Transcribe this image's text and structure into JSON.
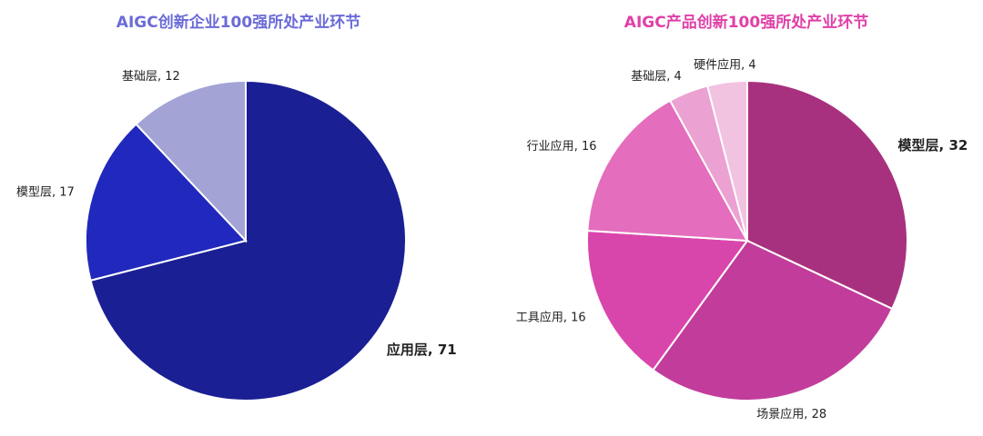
{
  "chart_data": [
    {
      "type": "pie",
      "title": "AIGC创新企业100强所处产业环节",
      "title_color": "#6b6bd8",
      "slices": [
        {
          "label": "应用层",
          "value": 71,
          "color": "#1a1f94",
          "emphasis": true
        },
        {
          "label": "模型层",
          "value": 17,
          "color": "#2028bd",
          "emphasis": false
        },
        {
          "label": "基础层",
          "value": 12,
          "color": "#a3a3d6",
          "emphasis": false
        }
      ]
    },
    {
      "type": "pie",
      "title": "AIGC产品创新100强所处产业环节",
      "title_color": "#e040a8",
      "slices": [
        {
          "label": "模型层",
          "value": 32,
          "color": "#a8317f",
          "emphasis": true,
          "label_color": "#e040a8"
        },
        {
          "label": "场景应用",
          "value": 28,
          "color": "#c23d9b",
          "emphasis": false
        },
        {
          "label": "工具应用",
          "value": 16,
          "color": "#d946ab",
          "emphasis": false
        },
        {
          "label": "行业应用",
          "value": 16,
          "color": "#e46dbd",
          "emphasis": false
        },
        {
          "label": "基础层",
          "value": 4,
          "color": "#eba1d1",
          "emphasis": false
        },
        {
          "label": "硬件应用",
          "value": 4,
          "color": "#f2c2e1",
          "emphasis": false
        }
      ]
    }
  ]
}
